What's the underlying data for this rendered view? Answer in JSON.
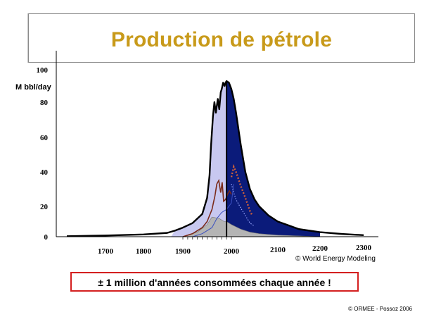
{
  "title": "Production de pétrole",
  "ylabel": "M bbl/day",
  "source": "© World Energy Modeling",
  "callout": "± 1 million d'années consommées chaque année !",
  "copyright": "© ORMEE - Possoz 2006",
  "colors": {
    "title": "#c89a1a",
    "past_fill": "#c8c8f0",
    "future_fill": "#0b1b7a",
    "grey_fill": "#b4b4b4",
    "brown_line": "#7a2a1a",
    "callout_border": "#d42020"
  },
  "chart_data": {
    "type": "area",
    "title": "Production de pétrole",
    "ylabel": "M bbl/day",
    "xlabel": "",
    "ylim": [
      0,
      100
    ],
    "yticks": [
      0,
      20,
      40,
      60,
      80,
      100
    ],
    "xticks": [
      1700,
      1800,
      1900,
      2000,
      2100,
      2200,
      2300
    ],
    "xlim": [
      1600,
      2310
    ],
    "grid": false,
    "legend": "none",
    "divider_year": 1990,
    "series": [
      {
        "kind": "total_outline",
        "x": [
          1600,
          1700,
          1800,
          1860,
          1880,
          1900,
          1920,
          1940,
          1950,
          1955,
          1958,
          1962,
          1965,
          1968,
          1972,
          1975,
          1978,
          1980,
          1983,
          1986,
          1988,
          1990,
          1995,
          2000,
          2005,
          2010,
          2020,
          2030,
          2040,
          2050,
          2060,
          2080,
          2100,
          2120,
          2150,
          2200,
          2250,
          2300
        ],
        "values": [
          0.3,
          0.8,
          1.5,
          2.5,
          4,
          6,
          9,
          15,
          25,
          38,
          55,
          72,
          80,
          74,
          82,
          76,
          86,
          88,
          92,
          90,
          92,
          93,
          92,
          88,
          82,
          74,
          56,
          40,
          30,
          24,
          20,
          14,
          10,
          8,
          5,
          3,
          1.8,
          1
        ]
      },
      {
        "kind": "grey_area",
        "x": [
          1900,
          1930,
          1950,
          1960,
          1975,
          1985,
          1990,
          2000,
          2020,
          2040,
          2060,
          2080,
          2100,
          2150,
          2200
        ],
        "values": [
          0,
          3,
          8,
          13,
          12,
          10,
          10,
          8,
          5,
          3,
          2,
          1.5,
          1,
          0.5,
          0
        ]
      },
      {
        "kind": "brown_line",
        "x": [
          1900,
          1920,
          1940,
          1950,
          1960,
          1966,
          1970,
          1974,
          1978,
          1981,
          1984,
          1988,
          1992,
          1996,
          2000
        ],
        "values": [
          0,
          2,
          6,
          10,
          18,
          26,
          33,
          35,
          28,
          34,
          23,
          24,
          27,
          29,
          27
        ]
      },
      {
        "kind": "brown_dotted",
        "x": [
          2000,
          2005,
          2010,
          2020,
          2030,
          2040,
          2045
        ],
        "values": [
          37,
          43,
          40,
          32,
          25,
          17,
          14
        ]
      },
      {
        "kind": "blue_dotted",
        "x": [
          2000,
          2005,
          2010,
          2020,
          2030,
          2040,
          2050
        ],
        "values": [
          33,
          28,
          24,
          19,
          14,
          9,
          7
        ]
      },
      {
        "kind": "blue_line",
        "x": [
          1920,
          1940,
          1960,
          1970,
          1980,
          1990,
          2000,
          2005
        ],
        "values": [
          0,
          2,
          6,
          12,
          16,
          18,
          22,
          33
        ]
      }
    ]
  }
}
